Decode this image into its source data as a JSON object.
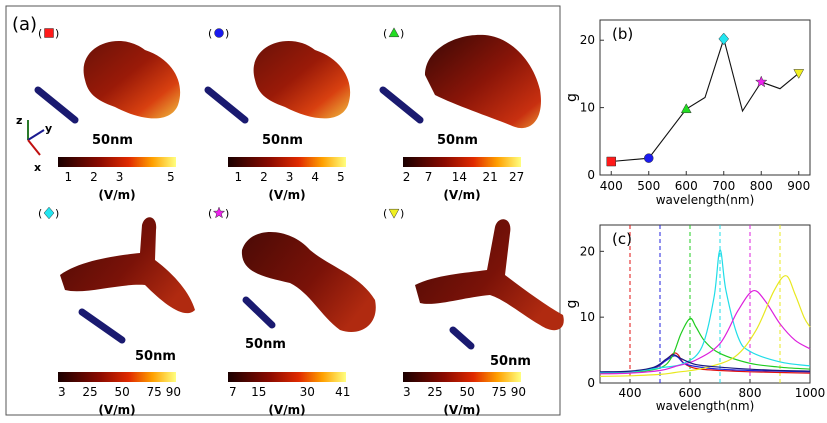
{
  "panel_a": {
    "label": "(a)",
    "cells": [
      {
        "marker": "square",
        "color": "#ff1a1a",
        "scale_label": "50nm",
        "ticks": [
          "1",
          "2",
          "3",
          "5"
        ],
        "tick_vals": [
          1,
          2,
          3,
          5
        ],
        "range": [
          0.6,
          5.2
        ],
        "unit": "(V/m)",
        "shape": "blob"
      },
      {
        "marker": "circle",
        "color": "#1a1aee",
        "scale_label": "50nm",
        "ticks": [
          "1",
          "2",
          "3",
          "4",
          "5"
        ],
        "tick_vals": [
          1,
          2,
          3,
          4,
          5
        ],
        "range": [
          0.6,
          5.2
        ],
        "unit": "(V/m)",
        "shape": "blob"
      },
      {
        "marker": "triangle",
        "color": "#22dd22",
        "scale_label": "50nm",
        "ticks": [
          "2",
          "7",
          "14",
          "21",
          "27"
        ],
        "tick_vals": [
          2,
          7,
          14,
          21,
          27
        ],
        "range": [
          1.2,
          28
        ],
        "unit": "(V/m)",
        "shape": "arch"
      },
      {
        "marker": "diamond",
        "color": "#22e5f0",
        "scale_label": "50nm",
        "ticks": [
          "3",
          "25",
          "50",
          "75",
          "90"
        ],
        "tick_vals": [
          3,
          25,
          50,
          75,
          90
        ],
        "range": [
          0,
          92
        ],
        "unit": "(V/m)",
        "shape": "tri"
      },
      {
        "marker": "star",
        "color": "#ee22ee",
        "scale_label": "50nm",
        "ticks": [
          "7",
          "15",
          "30",
          "41"
        ],
        "tick_vals": [
          7,
          15,
          30,
          41
        ],
        "range": [
          5.5,
          42
        ],
        "unit": "(V/m)",
        "shape": "twist"
      },
      {
        "marker": "down-triangle",
        "color": "#f0f020",
        "scale_label": "50nm",
        "ticks": [
          "3",
          "25",
          "50",
          "75",
          "90"
        ],
        "tick_vals": [
          3,
          25,
          50,
          75,
          90
        ],
        "range": [
          0,
          92
        ],
        "unit": "(V/m)",
        "shape": "tri2"
      }
    ],
    "axes": {
      "x": "x",
      "y": "y",
      "z": "z"
    }
  },
  "chart_data": [
    {
      "type": "scatter",
      "panel": "(b)",
      "x": [
        400,
        500,
        600,
        650,
        700,
        750,
        800,
        850,
        900
      ],
      "y": [
        2,
        2.5,
        9.8,
        11.5,
        20.2,
        9.5,
        13.8,
        12.8,
        15.1
      ],
      "markers": [
        {
          "x": 400,
          "y": 2,
          "marker": "square",
          "color": "#ff1a1a"
        },
        {
          "x": 500,
          "y": 2.5,
          "marker": "circle",
          "color": "#1a1aee"
        },
        {
          "x": 600,
          "y": 9.8,
          "marker": "triangle",
          "color": "#22dd22"
        },
        {
          "x": 700,
          "y": 20.2,
          "marker": "diamond",
          "color": "#22e5f0"
        },
        {
          "x": 800,
          "y": 13.8,
          "marker": "star",
          "color": "#ee22ee"
        },
        {
          "x": 900,
          "y": 15.1,
          "marker": "down-triangle",
          "color": "#f0f020"
        }
      ],
      "xlabel": "wavelength(nm)",
      "ylabel": "g",
      "xlim": [
        370,
        930
      ],
      "ylim": [
        0,
        23
      ],
      "xticks": [
        400,
        500,
        600,
        700,
        800,
        900
      ],
      "yticks": [
        0,
        10,
        20
      ]
    },
    {
      "type": "line",
      "panel": "(c)",
      "xlabel": "wavelength(nm)",
      "ylabel": "g",
      "xlim": [
        300,
        1000
      ],
      "ylim": [
        0,
        24
      ],
      "xticks": [
        400,
        600,
        800,
        1000
      ],
      "yticks": [
        0,
        10,
        20
      ],
      "vlines": [
        {
          "x": 400,
          "color": "#e01010"
        },
        {
          "x": 500,
          "color": "#2020dd"
        },
        {
          "x": 600,
          "color": "#20cc20"
        },
        {
          "x": 700,
          "color": "#20dde8"
        },
        {
          "x": 800,
          "color": "#dd20dd"
        },
        {
          "x": 900,
          "color": "#e8e820"
        }
      ],
      "series": [
        {
          "color": "#e01010",
          "x": [
            300,
            400,
            480,
            520,
            545,
            560,
            580,
            620,
            700,
            800,
            900,
            1000
          ],
          "y": [
            1.5,
            1.6,
            2.2,
            3.5,
            4.5,
            4.3,
            3.0,
            2.2,
            1.9,
            1.7,
            1.6,
            1.5
          ]
        },
        {
          "color": "#2020dd",
          "x": [
            300,
            400,
            480,
            520,
            545,
            560,
            580,
            620,
            700,
            800,
            900,
            1000
          ],
          "y": [
            1.6,
            1.7,
            2.3,
            3.4,
            4.1,
            3.9,
            3.0,
            2.5,
            2.1,
            1.9,
            1.8,
            1.7
          ]
        },
        {
          "color": "#20cc20",
          "x": [
            300,
            400,
            500,
            540,
            570,
            600,
            620,
            650,
            700,
            800,
            900,
            1000
          ],
          "y": [
            1.5,
            1.6,
            2.3,
            4.0,
            7.5,
            9.8,
            8.5,
            6.3,
            4.5,
            3.0,
            2.4,
            2.1
          ]
        },
        {
          "color": "#20dde8",
          "x": [
            300,
            400,
            500,
            580,
            640,
            680,
            700,
            720,
            760,
            800,
            900,
            1000
          ],
          "y": [
            1.6,
            1.7,
            2.3,
            3.0,
            5.5,
            13.0,
            20.2,
            14.0,
            7.0,
            4.8,
            3.2,
            2.6
          ]
        },
        {
          "color": "#dd20dd",
          "x": [
            300,
            400,
            500,
            550,
            620,
            700,
            760,
            810,
            850,
            900,
            950,
            1000
          ],
          "y": [
            1.4,
            1.5,
            1.9,
            2.5,
            3.5,
            6.0,
            11.0,
            14.0,
            12.5,
            9.0,
            6.5,
            5.2
          ]
        },
        {
          "color": "#e8e820",
          "x": [
            300,
            400,
            500,
            550,
            650,
            750,
            820,
            880,
            920,
            950,
            980,
            1000
          ],
          "y": [
            1.0,
            1.1,
            1.3,
            1.6,
            2.3,
            4.0,
            8.0,
            14.0,
            16.3,
            13.5,
            10.0,
            8.5
          ]
        },
        {
          "color": "#1a1a80",
          "x": [
            300,
            400,
            480,
            520,
            545,
            570,
            620,
            700,
            800,
            900,
            1000
          ],
          "y": [
            1.7,
            1.8,
            2.4,
            3.6,
            4.3,
            3.7,
            2.8,
            2.4,
            2.1,
            1.9,
            1.8
          ]
        }
      ]
    }
  ]
}
